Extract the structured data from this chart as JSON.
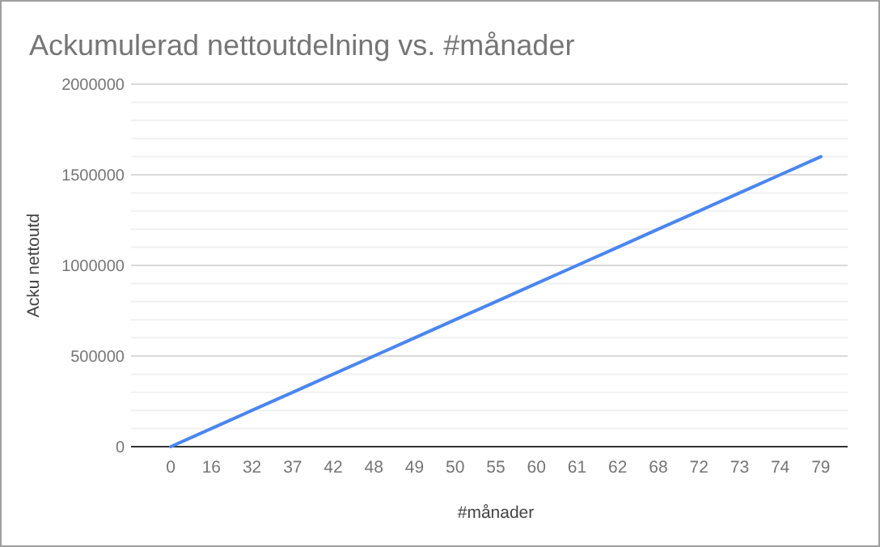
{
  "chart_data": {
    "type": "line",
    "title": "Ackumulerad nettoutdelning vs. #månader",
    "xlabel": "#månader",
    "ylabel": "Acku nettoutd",
    "categories": [
      "0",
      "16",
      "32",
      "37",
      "42",
      "48",
      "49",
      "50",
      "55",
      "60",
      "61",
      "62",
      "68",
      "72",
      "73",
      "74",
      "79"
    ],
    "series": [
      {
        "color": "#4a86f0",
        "values": [
          0,
          100000,
          200000,
          300000,
          400000,
          500000,
          600000,
          700000,
          800000,
          900000,
          1000000,
          1100000,
          1200000,
          1300000,
          1400000,
          1500000,
          1600000
        ]
      }
    ],
    "ylim": [
      0,
      2000000
    ],
    "yticks": [
      0,
      {
        "value": 100000,
        "label": null
      },
      {
        "value": 200000,
        "label": null
      },
      {
        "value": 300000,
        "label": null
      },
      {
        "value": 400000,
        "label": null
      },
      500000,
      {
        "value": 600000,
        "label": null
      },
      {
        "value": 700000,
        "label": null
      },
      {
        "value": 800000,
        "label": null
      },
      {
        "value": 900000,
        "label": null
      },
      1000000,
      {
        "value": 1100000,
        "label": null
      },
      {
        "value": 1200000,
        "label": null
      },
      {
        "value": 1300000,
        "label": null
      },
      {
        "value": 1400000,
        "label": null
      },
      1500000,
      {
        "value": 1600000,
        "label": null
      },
      {
        "value": 1700000,
        "label": null
      },
      {
        "value": 1800000,
        "label": null
      },
      {
        "value": 1900000,
        "label": null
      },
      2000000
    ],
    "grid": "y",
    "marker": "none",
    "line_style": "solid"
  }
}
